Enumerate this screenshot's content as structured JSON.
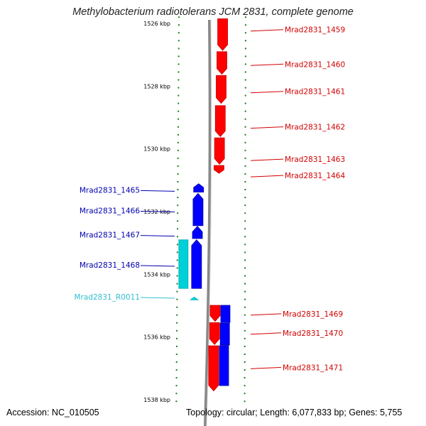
{
  "title": "Methylobacterium radiotolerans JCM 2831, complete genome",
  "footer": {
    "accession": "Accession: NC_010505",
    "topology": "Topology: circular; Length: 6,077,833 bp; Genes: 5,755"
  },
  "colors": {
    "forward_gene": "#ff0000",
    "forward_gene_dark": "#c40000",
    "reverse_gene": "#0000ff",
    "reverse_gene_dark": "#0000a8",
    "rna": "#00d0d8",
    "rna_dark": "#00a8b0",
    "forward_label": "#d10000",
    "reverse_label": "#0000b0",
    "rna_label": "#30c0d0",
    "tick": "#1f7a1f",
    "backbone": "#888888"
  },
  "chart_data": {
    "type": "genome-map",
    "view_range_kbp": [
      1525.8,
      1538.1
    ],
    "ticks": [
      {
        "kbp": 1526,
        "label": "1526 kbp"
      },
      {
        "kbp": 1528,
        "label": "1528 kbp"
      },
      {
        "kbp": 1530,
        "label": "1530 kbp"
      },
      {
        "kbp": 1532,
        "label": "1532 kbp"
      },
      {
        "kbp": 1534,
        "label": "1534 kbp"
      },
      {
        "kbp": 1536,
        "label": "1536 kbp"
      },
      {
        "kbp": 1538,
        "label": "1538 kbp"
      }
    ],
    "genes": [
      {
        "id": "Mrad2831_1459",
        "strand": "+",
        "type": "CDS",
        "track": 1,
        "start": 1525.85,
        "end": 1526.86,
        "label_at": 1526.22
      },
      {
        "id": "Mrad2831_1460",
        "strand": "+",
        "type": "CDS",
        "track": 1,
        "start": 1526.9,
        "end": 1527.62,
        "label_at": 1527.32
      },
      {
        "id": "Mrad2831_1461",
        "strand": "+",
        "type": "CDS",
        "track": 1,
        "start": 1527.66,
        "end": 1528.55,
        "label_at": 1528.19
      },
      {
        "id": "Mrad2831_1462",
        "strand": "+",
        "type": "CDS",
        "track": 1,
        "start": 1528.62,
        "end": 1529.61,
        "label_at": 1529.32
      },
      {
        "id": "Mrad2831_1463",
        "strand": "+",
        "type": "CDS",
        "track": 1,
        "start": 1529.65,
        "end": 1530.49,
        "label_at": 1530.35
      },
      {
        "id": "Mrad2831_1464",
        "strand": "+",
        "type": "CDS",
        "track": 1,
        "start": 1530.53,
        "end": 1530.78,
        "label_at": 1530.87
      },
      {
        "id": "Mrad2831_1465",
        "strand": "-",
        "type": "CDS",
        "track": 1,
        "start": 1531.11,
        "end": 1531.38,
        "label_at": 1531.33
      },
      {
        "id": "Mrad2831_1466",
        "strand": "-",
        "type": "CDS",
        "track": 1,
        "start": 1531.42,
        "end": 1532.45,
        "label_at": 1531.99
      },
      {
        "id": "Mrad2831_1467",
        "strand": "-",
        "type": "CDS",
        "track": 1,
        "start": 1532.47,
        "end": 1532.86,
        "label_at": 1532.76
      },
      {
        "id": "Mrad2831_1468",
        "strand": "-",
        "type": "CDS",
        "track": 1,
        "start": 1532.9,
        "end": 1534.45,
        "label_at": 1533.72
      },
      {
        "id": "Mrad2831_1468_rna",
        "strand": "-",
        "type": "RNA-track",
        "track": 2,
        "start": 1532.9,
        "end": 1534.45,
        "label_at": null
      },
      {
        "id": "Mrad2831_R0011",
        "strand": "-",
        "type": "RNA",
        "track": 1,
        "start": 1534.72,
        "end": 1534.82,
        "label_at": 1534.74
      },
      {
        "id": "Mrad2831_1469",
        "strand": "+",
        "type": "CDS",
        "track": 1,
        "start": 1534.99,
        "end": 1535.5,
        "label_at": 1535.28
      },
      {
        "id": "Mrad2831_1469_b",
        "strand": "+",
        "type": "CDS",
        "track": 2,
        "start": 1534.99,
        "end": 1535.54,
        "label_at": null
      },
      {
        "id": "Mrad2831_1470",
        "strand": "+",
        "type": "CDS",
        "track": 1,
        "start": 1535.54,
        "end": 1536.24,
        "label_at": 1535.89
      },
      {
        "id": "Mrad2831_1470_b",
        "strand": "-",
        "type": "CDS",
        "track": 2,
        "start": 1535.56,
        "end": 1536.26,
        "label_at": null
      },
      {
        "id": "Mrad2831_1471",
        "strand": "+",
        "type": "CDS",
        "track": 1,
        "start": 1536.28,
        "end": 1537.72,
        "label_at": 1536.99
      },
      {
        "id": "Mrad2831_1471_b",
        "strand": "-",
        "type": "CDS",
        "track": 2,
        "start": 1536.28,
        "end": 1537.55,
        "label_at": null
      }
    ],
    "labels": [
      {
        "text": "Mrad2831_1459",
        "side": "right",
        "for": "Mrad2831_1459"
      },
      {
        "text": "Mrad2831_1460",
        "side": "right",
        "for": "Mrad2831_1460"
      },
      {
        "text": "Mrad2831_1461",
        "side": "right",
        "for": "Mrad2831_1461"
      },
      {
        "text": "Mrad2831_1462",
        "side": "right",
        "for": "Mrad2831_1462"
      },
      {
        "text": "Mrad2831_1463",
        "side": "right",
        "for": "Mrad2831_1463"
      },
      {
        "text": "Mrad2831_1464",
        "side": "right",
        "for": "Mrad2831_1464"
      },
      {
        "text": "Mrad2831_1465",
        "side": "left",
        "for": "Mrad2831_1465"
      },
      {
        "text": "Mrad2831_1466",
        "side": "left",
        "for": "Mrad2831_1466"
      },
      {
        "text": "Mrad2831_1467",
        "side": "left",
        "for": "Mrad2831_1467"
      },
      {
        "text": "Mrad2831_1468",
        "side": "left",
        "for": "Mrad2831_1468"
      },
      {
        "text": "Mrad2831_R0011",
        "side": "left",
        "for": "Mrad2831_R0011"
      },
      {
        "text": "Mrad2831_1469",
        "side": "right",
        "for": "Mrad2831_1469"
      },
      {
        "text": "Mrad2831_1470",
        "side": "right",
        "for": "Mrad2831_1470"
      },
      {
        "text": "Mrad2831_1471",
        "side": "right",
        "for": "Mrad2831_1471"
      }
    ]
  }
}
